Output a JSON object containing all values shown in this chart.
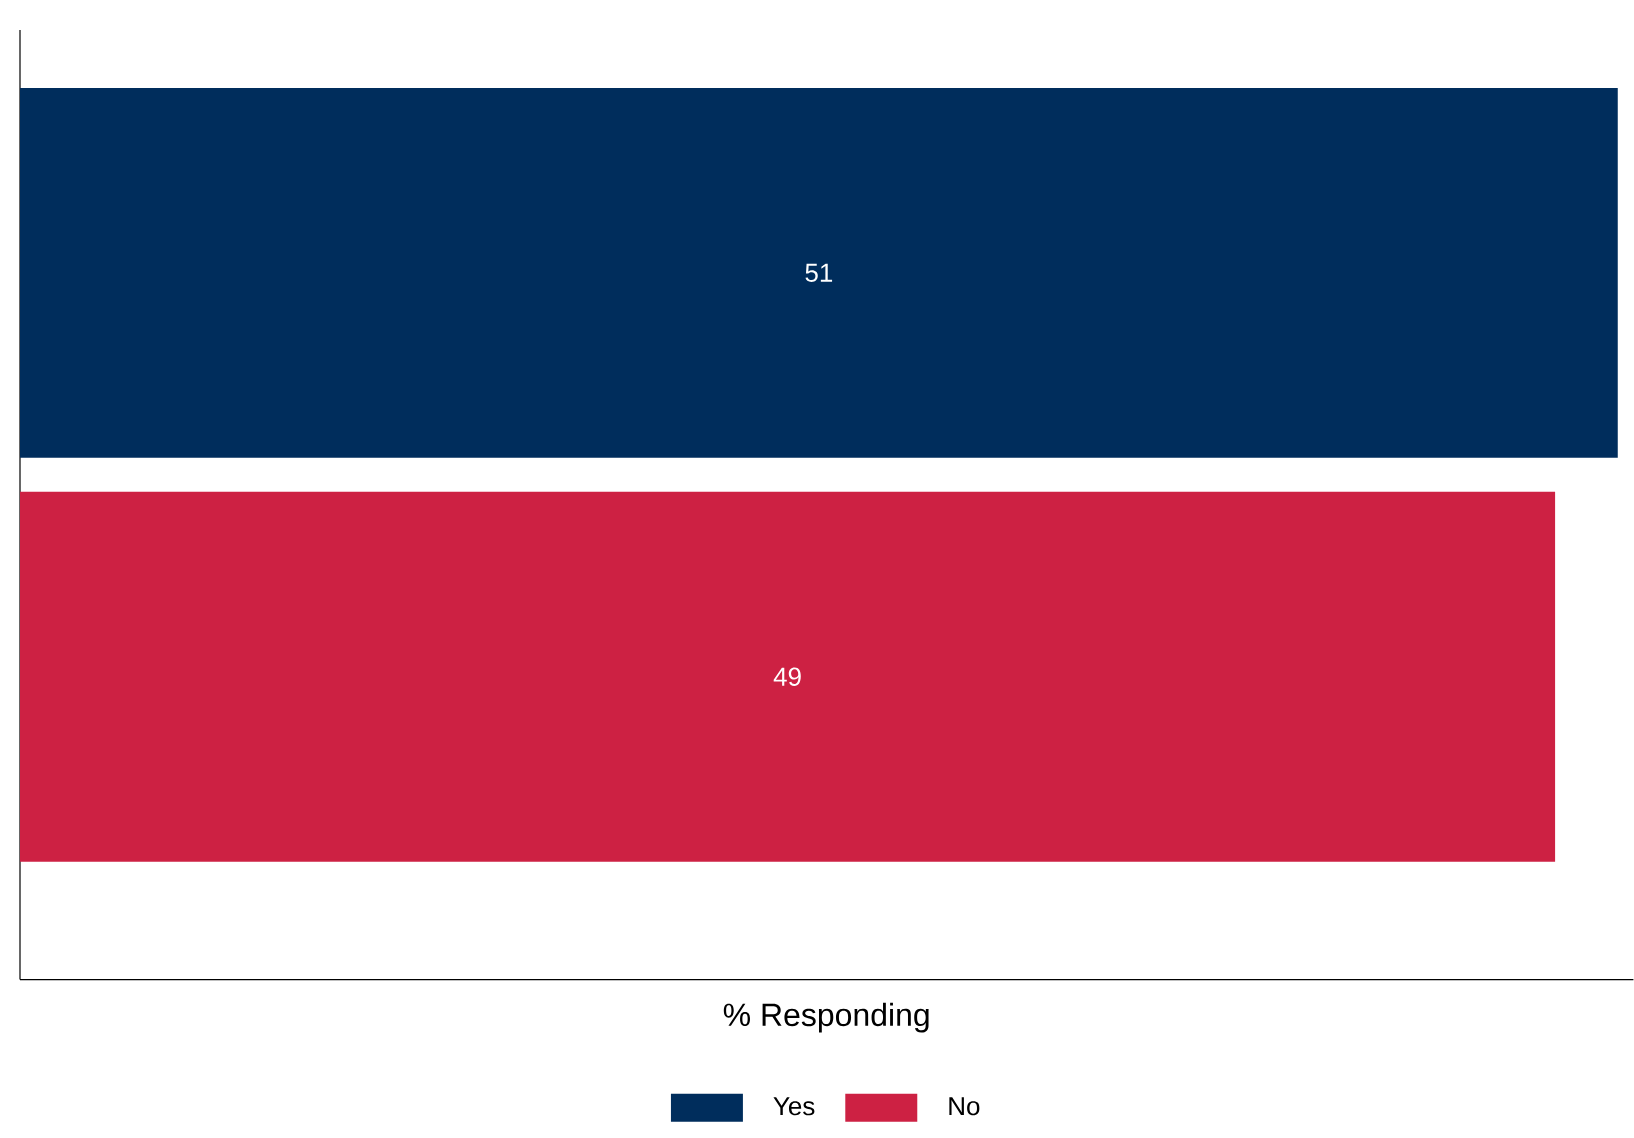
{
  "chart_data": {
    "type": "bar",
    "orientation": "horizontal",
    "xlabel": "% Responding",
    "categories": [
      null
    ],
    "series": [
      {
        "name": "Yes",
        "color": "#002d5c",
        "values": [
          51
        ]
      },
      {
        "name": "No",
        "color": "#cd2143",
        "values": [
          49
        ]
      }
    ],
    "xlim": [
      0,
      51.5
    ],
    "data_labels": true,
    "tick_labels": false,
    "legend": "bottom"
  }
}
